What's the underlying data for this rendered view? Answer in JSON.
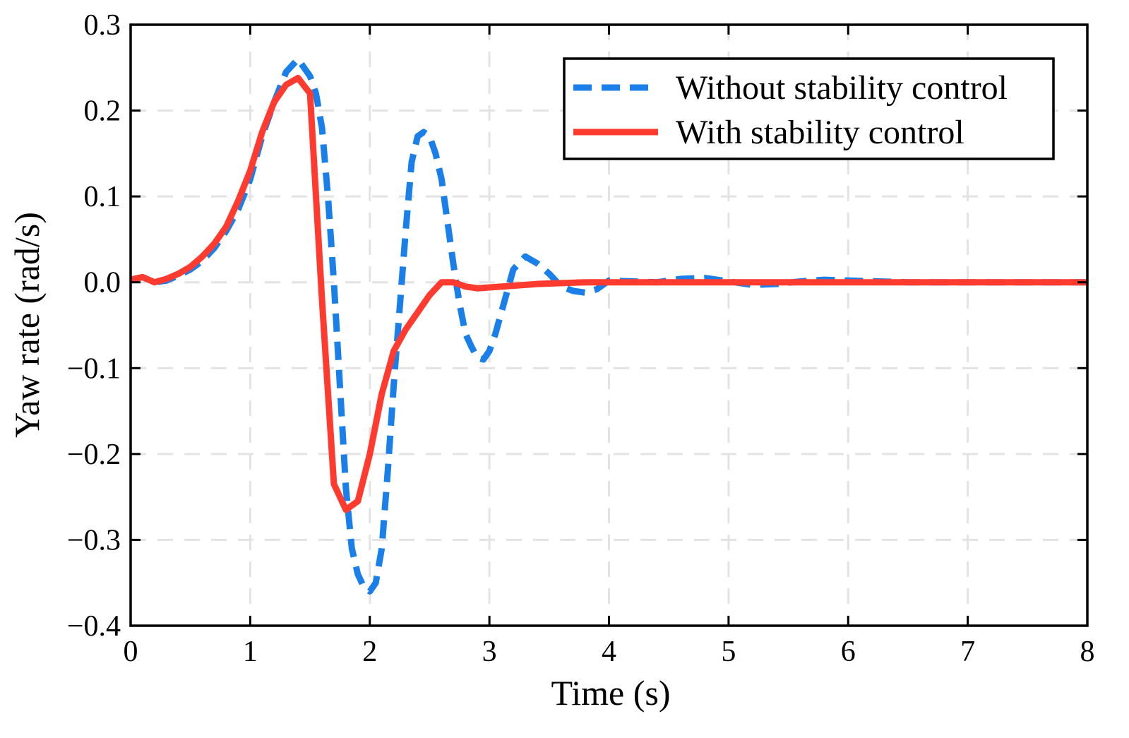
{
  "chart_data": {
    "type": "line",
    "xlabel": "Time (s)",
    "ylabel": "Yaw rate (rad/s)",
    "xlim": [
      0,
      8
    ],
    "ylim": [
      -0.4,
      0.3
    ],
    "xticks": [
      0,
      1,
      2,
      3,
      4,
      5,
      6,
      7,
      8
    ],
    "xtick_labels": [
      "0",
      "1",
      "2",
      "3",
      "4",
      "5",
      "6",
      "7",
      "8"
    ],
    "yticks": [
      -0.4,
      -0.3,
      -0.2,
      -0.1,
      0.0,
      0.1,
      0.2,
      0.3
    ],
    "ytick_labels": [
      "−0.4",
      "−0.3",
      "−0.2",
      "−0.1",
      "0.0",
      "0.1",
      "0.2",
      "0.3"
    ],
    "grid": true,
    "legend_position": "top-right",
    "series": [
      {
        "name": "Without stability control",
        "color": "#1a7fe8",
        "style": "dashed",
        "x": [
          0,
          0.1,
          0.2,
          0.3,
          0.4,
          0.5,
          0.6,
          0.7,
          0.8,
          0.9,
          1.0,
          1.1,
          1.2,
          1.3,
          1.4,
          1.45,
          1.5,
          1.55,
          1.6,
          1.65,
          1.7,
          1.75,
          1.8,
          1.85,
          1.9,
          1.95,
          2.0,
          2.05,
          2.1,
          2.15,
          2.2,
          2.25,
          2.3,
          2.35,
          2.4,
          2.45,
          2.5,
          2.55,
          2.6,
          2.65,
          2.7,
          2.75,
          2.8,
          2.85,
          2.9,
          2.95,
          3.0,
          3.05,
          3.1,
          3.15,
          3.2,
          3.3,
          3.4,
          3.5,
          3.6,
          3.7,
          3.8,
          3.9,
          4.0,
          4.2,
          4.4,
          4.6,
          4.8,
          5.0,
          5.2,
          5.4,
          5.6,
          5.8,
          6.0,
          6.5,
          7.0,
          7.5,
          8.0
        ],
        "y": [
          0.003,
          0.006,
          0.0,
          0.002,
          0.008,
          0.015,
          0.025,
          0.04,
          0.06,
          0.085,
          0.12,
          0.17,
          0.21,
          0.245,
          0.26,
          0.25,
          0.24,
          0.22,
          0.18,
          0.1,
          0.0,
          -0.12,
          -0.24,
          -0.31,
          -0.34,
          -0.355,
          -0.36,
          -0.35,
          -0.31,
          -0.22,
          -0.12,
          -0.03,
          0.06,
          0.14,
          0.17,
          0.175,
          0.17,
          0.15,
          0.12,
          0.07,
          0.02,
          -0.025,
          -0.06,
          -0.075,
          -0.088,
          -0.09,
          -0.08,
          -0.06,
          -0.035,
          -0.01,
          0.015,
          0.03,
          0.022,
          0.01,
          -0.005,
          -0.01,
          -0.012,
          -0.008,
          0.002,
          0.001,
          0.0,
          0.004,
          0.005,
          0.001,
          -0.003,
          -0.002,
          0.001,
          0.003,
          0.002,
          0.0,
          0.0,
          0.0,
          0.0
        ]
      },
      {
        "name": "With stability control",
        "color": "#ff3a2f",
        "style": "solid",
        "x": [
          0,
          0.1,
          0.2,
          0.3,
          0.4,
          0.5,
          0.6,
          0.7,
          0.8,
          0.9,
          1.0,
          1.1,
          1.2,
          1.3,
          1.4,
          1.5,
          1.6,
          1.7,
          1.8,
          1.9,
          2.0,
          2.1,
          2.2,
          2.3,
          2.4,
          2.5,
          2.6,
          2.7,
          2.8,
          2.9,
          3.0,
          3.2,
          3.4,
          3.6,
          3.8,
          4.0,
          5.0,
          6.0,
          7.0,
          8.0
        ],
        "y": [
          0.003,
          0.006,
          0.0,
          0.004,
          0.01,
          0.018,
          0.03,
          0.045,
          0.065,
          0.095,
          0.13,
          0.175,
          0.21,
          0.23,
          0.238,
          0.22,
          -0.02,
          -0.235,
          -0.265,
          -0.255,
          -0.2,
          -0.13,
          -0.08,
          -0.055,
          -0.035,
          -0.015,
          0.0,
          0.0,
          -0.005,
          -0.007,
          -0.006,
          -0.004,
          -0.002,
          -0.001,
          0.0,
          0.0,
          0.0,
          0.0,
          0.0,
          0.0
        ]
      }
    ]
  }
}
